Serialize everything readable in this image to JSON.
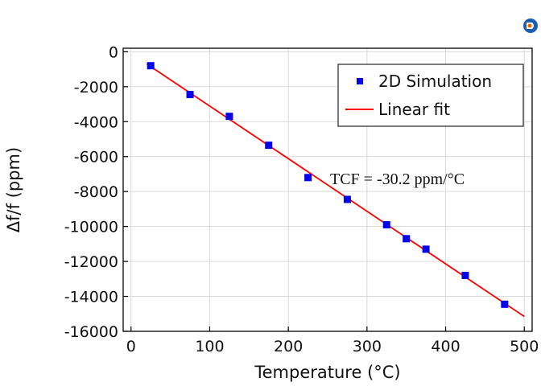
{
  "chart_data": {
    "type": "scatter",
    "xlabel": "Temperature (°C)",
    "ylabel": "Δf/f (ppm)",
    "xlim": [
      -10,
      510
    ],
    "ylim": [
      -16000,
      200
    ],
    "xticks": [
      0,
      100,
      200,
      300,
      400,
      500
    ],
    "yticks": [
      0,
      -2000,
      -4000,
      -6000,
      -8000,
      -10000,
      -12000,
      -14000,
      -16000
    ],
    "grid": true,
    "legend_position": "top-right",
    "series": [
      {
        "name": "2D Simulation",
        "kind": "markers",
        "color": "#0000ee",
        "x": [
          25,
          75,
          125,
          175,
          225,
          275,
          325,
          350,
          375,
          425,
          475
        ],
        "y": [
          -800,
          -2450,
          -3700,
          -5350,
          -7200,
          -8450,
          -9900,
          -10700,
          -11300,
          -12800,
          -14450
        ]
      },
      {
        "name": "Linear fit",
        "kind": "line",
        "color": "#ff0000",
        "x": [
          20,
          500
        ],
        "y": [
          -700,
          -15150
        ]
      }
    ],
    "annotation": "TCF = -30.2 ppm/°C"
  },
  "app_icon": {
    "name": "app-logo-icon",
    "color": "#1a5fb4"
  }
}
